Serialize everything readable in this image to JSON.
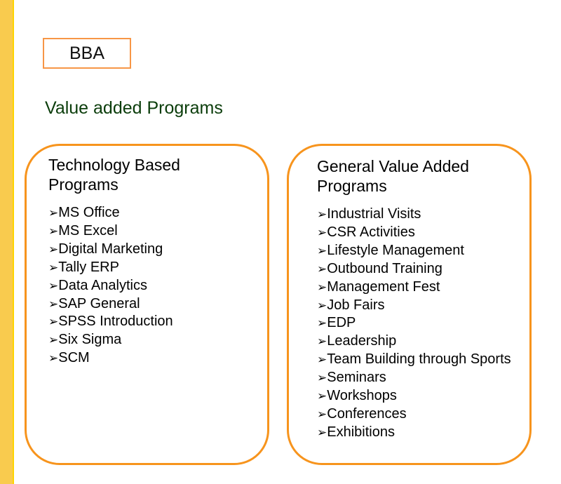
{
  "label": "BBA",
  "title": "Value added Programs",
  "columns": [
    {
      "heading_line1": "Technology Based",
      "heading_line2": "Programs",
      "items": [
        "MS Office",
        "MS Excel",
        "Digital Marketing",
        "Tally ERP",
        "Data Analytics",
        "SAP General",
        "SPSS Introduction",
        "Six Sigma",
        "SCM"
      ]
    },
    {
      "heading_line1": "General Value Added",
      "heading_line2": "Programs",
      "items": [
        "Industrial Visits",
        "CSR Activities",
        "Lifestyle Management",
        "Outbound Training",
        "Management Fest",
        "Job Fairs",
        "EDP",
        "Leadership",
        "Team Building through Sports",
        "Seminars",
        "Workshops",
        "Conferences",
        "Exhibitions"
      ]
    }
  ],
  "bullet_icon": "arrowhead-bullet",
  "colors": {
    "accent": "#F7941D",
    "title": "#0B3D0B",
    "sidebar": "#F9CB4E"
  }
}
